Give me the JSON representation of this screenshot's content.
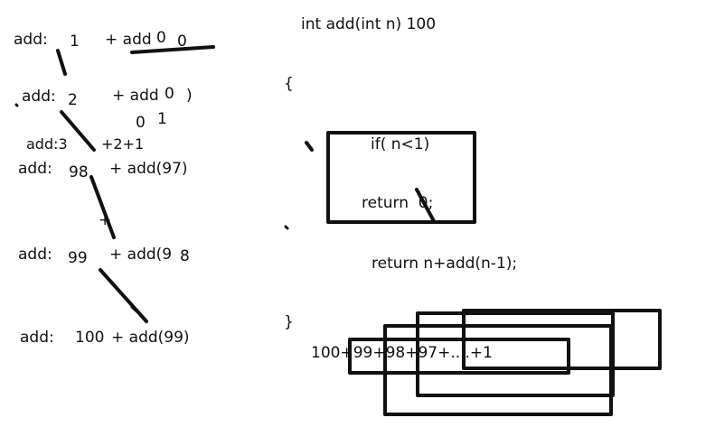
{
  "colors": {
    "ink": "#111111",
    "background": "#ffffff"
  },
  "left_trace": {
    "rows": [
      {
        "label": "add:",
        "value": "1",
        "tail": "+ add",
        "tail_value": "0",
        "extra": "0"
      },
      {
        "label": "add:",
        "value": "2",
        "tail": "+ add",
        "tail_value": "0",
        "extra": ")"
      },
      {
        "label": "add:",
        "value": "98",
        "tail": "+ add(97)",
        "tail_value": "",
        "extra": ""
      },
      {
        "label": "add:",
        "value": "99",
        "tail": "+ add(9",
        "tail_value": "8",
        "extra": ""
      },
      {
        "label": "add:",
        "value": "100",
        "tail": "+ add(99)",
        "tail_value": "",
        "extra": ""
      }
    ],
    "notes": {
      "zero_one_a": "0",
      "zero_one_b": "1",
      "add3": "add:3",
      "plus_chain": "+2+1",
      "plus_mark": "+"
    }
  },
  "code": {
    "signature": "int add(int n) 100",
    "open_brace": "{",
    "if_line": "if( n<1)",
    "return_zero": "return  0;",
    "return_rec": "return n+add(n-1);",
    "close_brace": "}"
  },
  "sum_expression": "100+99+98+97+....+1"
}
